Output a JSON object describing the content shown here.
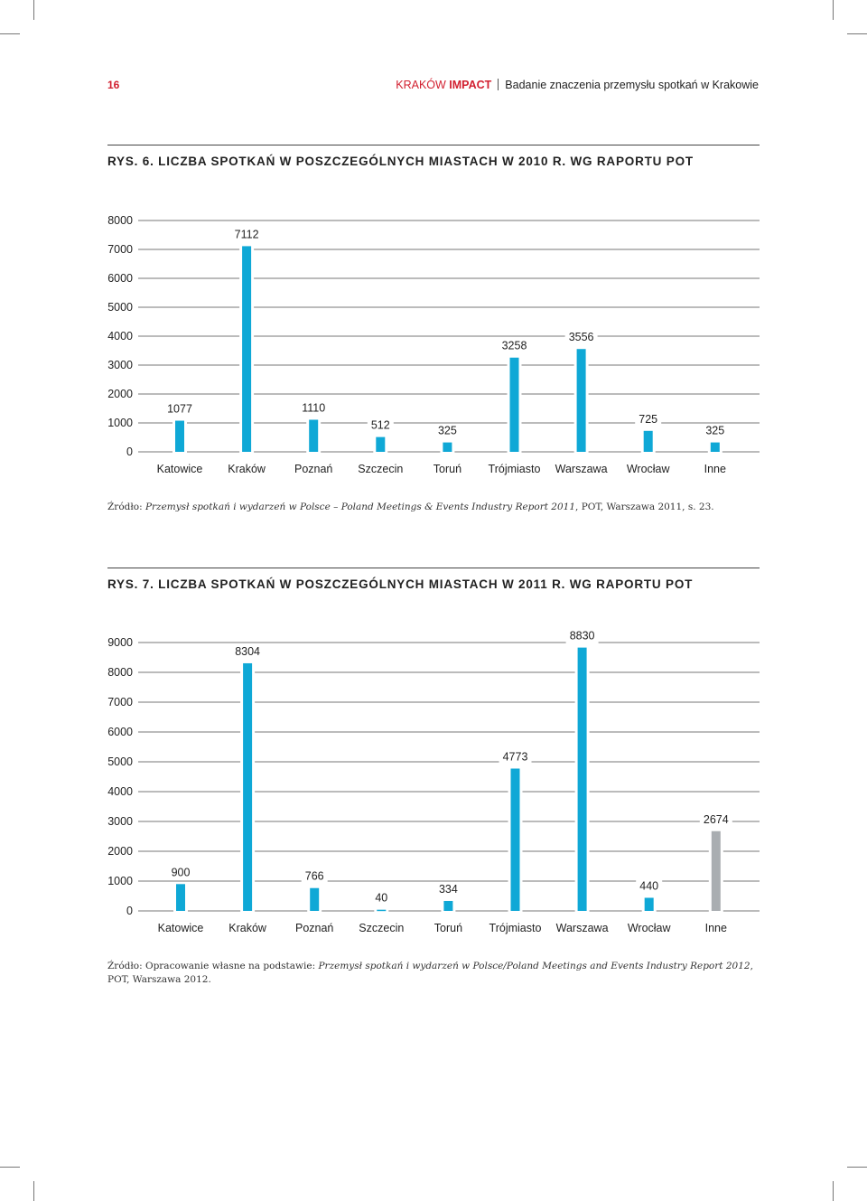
{
  "header": {
    "page_number": "16",
    "brand_prefix": "KRAKÓW ",
    "brand_strong": "IMPACT",
    "subtitle": "Badanie znaczenia przemysłu spotkań w Krakowie"
  },
  "colors": {
    "bar": "#0fa8d6",
    "bar_other": "#a9adb1",
    "accent": "#d22030",
    "grid": "#777777"
  },
  "figure1": {
    "title": "RYS. 6. LICZBA SPOTKAŃ W POSZCZEGÓLNYCH MIASTACH W 2010 R. WG RAPORTU POT",
    "source_prefix": "Źródło: ",
    "source_italic": "Przemysł spotkań i wydarzeń w Polsce – Poland Meetings & Events Industry Report 2011",
    "source_suffix": ", POT, Warszawa 2011, s. 23."
  },
  "figure2": {
    "title": "RYS. 7. LICZBA SPOTKAŃ W POSZCZEGÓLNYCH MIASTACH W 2011 R. WG RAPORTU POT",
    "source_prefix": "Źródło: Opracowanie własne na podstawie: ",
    "source_italic": "Przemysł spotkań i wydarzeń w Polsce/Poland Meetings and Events Industry Report 2012",
    "source_suffix": ", POT, Warszawa 2012."
  },
  "chart_data": [
    {
      "type": "bar",
      "categories": [
        "Katowice",
        "Kraków",
        "Poznań",
        "Szczecin",
        "Toruń",
        "Trójmiasto",
        "Warszawa",
        "Wrocław",
        "Inne"
      ],
      "values": [
        1077,
        7112,
        1110,
        512,
        325,
        3258,
        3556,
        725,
        325
      ],
      "y_ticks": [
        0,
        1000,
        2000,
        3000,
        4000,
        5000,
        6000,
        7000,
        8000
      ],
      "ylim": [
        0,
        8000
      ],
      "grid": true
    },
    {
      "type": "bar",
      "categories": [
        "Katowice",
        "Kraków",
        "Poznań",
        "Szczecin",
        "Toruń",
        "Trójmiasto",
        "Warszawa",
        "Wrocław",
        "Inne"
      ],
      "values": [
        900,
        8304,
        766,
        40,
        334,
        4773,
        8830,
        440,
        2674
      ],
      "highlight_category": "Inne",
      "y_ticks": [
        0,
        1000,
        2000,
        3000,
        4000,
        5000,
        6000,
        7000,
        8000,
        9000
      ],
      "ylim": [
        0,
        9000
      ],
      "grid": true
    }
  ]
}
